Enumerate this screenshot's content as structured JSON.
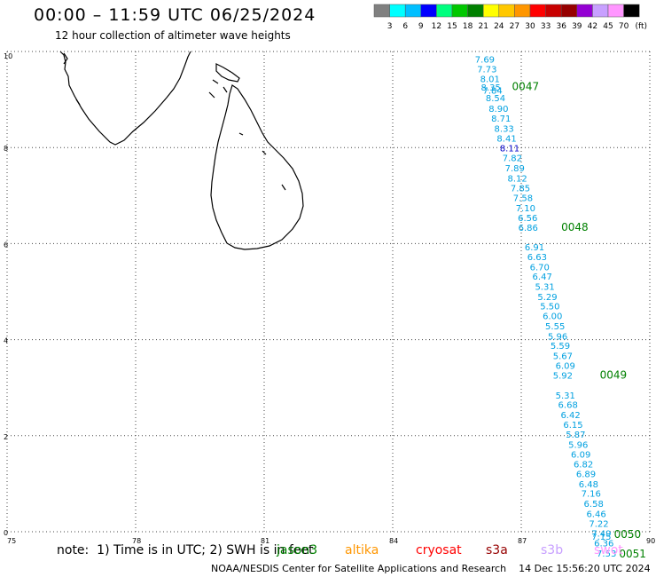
{
  "header": {
    "title": "00:00 – 11:59 UTC 06/25/2024",
    "subtitle": "12 hour collection of altimeter wave heights"
  },
  "colorbar": {
    "swatches": [
      "#808080",
      "#00ffff",
      "#00bfff",
      "#0000ff",
      "#00ff7f",
      "#00c800",
      "#008000",
      "#ffff00",
      "#ffc800",
      "#ff9600",
      "#ff0000",
      "#c80000",
      "#960000",
      "#9400d3",
      "#c8a0ff",
      "#ff96ff",
      "#000000"
    ],
    "labels": [
      "3",
      "6",
      "9",
      "12",
      "15",
      "18",
      "21",
      "24",
      "27",
      "30",
      "33",
      "36",
      "39",
      "42",
      "45",
      "70"
    ],
    "unit": "(ft)"
  },
  "map": {
    "x_ticks": [
      "75",
      "78",
      "81",
      "84",
      "87",
      "90"
    ],
    "y_ticks": [
      "0",
      "2",
      "4",
      "6",
      "8",
      "10"
    ],
    "wave_color": "#00a0e0",
    "wave_highlight_color": "#0000c8",
    "label_color": "#008000",
    "wave_heights": [
      {
        "value": "7.69",
        "lon": 86.15,
        "lat": 9.84
      },
      {
        "value": "7.73",
        "lon": 86.2,
        "lat": 9.64
      },
      {
        "value": "8.01",
        "lon": 86.27,
        "lat": 9.44
      },
      {
        "value": "7.84",
        "lon": 86.33,
        "lat": 9.2
      },
      {
        "value": "8.35",
        "lon": 86.29,
        "lat": 9.26
      },
      {
        "value": "8.54",
        "lon": 86.4,
        "lat": 9.04
      },
      {
        "value": "8.90",
        "lon": 86.47,
        "lat": 8.82
      },
      {
        "value": "8.71",
        "lon": 86.53,
        "lat": 8.61
      },
      {
        "value": "8.33",
        "lon": 86.6,
        "lat": 8.4
      },
      {
        "value": "8.41",
        "lon": 86.66,
        "lat": 8.2
      },
      {
        "value": "8.11",
        "lon": 86.73,
        "lat": 7.99,
        "highlight": true
      },
      {
        "value": "7.82",
        "lon": 86.79,
        "lat": 7.79
      },
      {
        "value": "7.89",
        "lon": 86.85,
        "lat": 7.58
      },
      {
        "value": "8.12",
        "lon": 86.91,
        "lat": 7.37
      },
      {
        "value": "7.85",
        "lon": 86.98,
        "lat": 7.16
      },
      {
        "value": "7.58",
        "lon": 87.04,
        "lat": 6.96
      },
      {
        "value": "7.10",
        "lon": 87.1,
        "lat": 6.75
      },
      {
        "value": "6.56",
        "lon": 87.15,
        "lat": 6.54
      },
      {
        "value": "6.86",
        "lon": 87.16,
        "lat": 6.34
      },
      {
        "value": "6.91",
        "lon": 87.31,
        "lat": 5.93
      },
      {
        "value": "6.63",
        "lon": 87.37,
        "lat": 5.73
      },
      {
        "value": "6.70",
        "lon": 87.43,
        "lat": 5.52
      },
      {
        "value": "6.47",
        "lon": 87.49,
        "lat": 5.32
      },
      {
        "value": "5.31",
        "lon": 87.55,
        "lat": 5.11
      },
      {
        "value": "5.29",
        "lon": 87.61,
        "lat": 4.9
      },
      {
        "value": "5.50",
        "lon": 87.67,
        "lat": 4.7
      },
      {
        "value": "6.00",
        "lon": 87.73,
        "lat": 4.5
      },
      {
        "value": "5.55",
        "lon": 87.79,
        "lat": 4.29
      },
      {
        "value": "5.96",
        "lon": 87.85,
        "lat": 4.08
      },
      {
        "value": "5.59",
        "lon": 87.91,
        "lat": 3.88
      },
      {
        "value": "5.67",
        "lon": 87.97,
        "lat": 3.67
      },
      {
        "value": "6.09",
        "lon": 88.03,
        "lat": 3.47
      },
      {
        "value": "5.92",
        "lon": 87.97,
        "lat": 3.26
      },
      {
        "value": "5.31",
        "lon": 88.03,
        "lat": 2.85
      },
      {
        "value": "6.68",
        "lon": 88.09,
        "lat": 2.65
      },
      {
        "value": "6.42",
        "lon": 88.15,
        "lat": 2.44
      },
      {
        "value": "6.15",
        "lon": 88.21,
        "lat": 2.24
      },
      {
        "value": "5.87",
        "lon": 88.27,
        "lat": 2.03
      },
      {
        "value": "5.96",
        "lon": 88.33,
        "lat": 1.82
      },
      {
        "value": "6.09",
        "lon": 88.39,
        "lat": 1.62
      },
      {
        "value": "6.82",
        "lon": 88.45,
        "lat": 1.41
      },
      {
        "value": "6.89",
        "lon": 88.51,
        "lat": 1.21
      },
      {
        "value": "6.48",
        "lon": 88.57,
        "lat": 1.0
      },
      {
        "value": "7.16",
        "lon": 88.63,
        "lat": 0.8
      },
      {
        "value": "6.58",
        "lon": 88.69,
        "lat": 0.59
      },
      {
        "value": "6.46",
        "lon": 88.75,
        "lat": 0.38
      },
      {
        "value": "7.22",
        "lon": 88.81,
        "lat": 0.18
      },
      {
        "value": "7.49",
        "lon": 88.87,
        "lat": -0.03
      },
      {
        "value": "7.15",
        "lon": 88.87,
        "lat": -0.09
      },
      {
        "value": "6.36",
        "lon": 88.93,
        "lat": -0.23
      },
      {
        "value": "7.53",
        "lon": 88.99,
        "lat": -0.44
      }
    ],
    "pass_labels": [
      {
        "text": "0047",
        "lon": 87.1,
        "lat": 9.27
      },
      {
        "text": "0048",
        "lon": 88.25,
        "lat": 6.34
      },
      {
        "text": "0049",
        "lon": 89.15,
        "lat": 3.26
      },
      {
        "text": "0050",
        "lon": 89.48,
        "lat": -0.06
      },
      {
        "text": "0051",
        "lon": 89.6,
        "lat": -0.46
      }
    ]
  },
  "footer": {
    "note": "note:  1) Time is in UTC; 2) SWH is in feet",
    "satellites": [
      {
        "name": "jason3",
        "color": "#008000"
      },
      {
        "name": "altika",
        "color": "#ff9600"
      },
      {
        "name": "cryosat",
        "color": "#ff0000"
      },
      {
        "name": "s3a",
        "color": "#960000"
      },
      {
        "name": "s3b",
        "color": "#c8a0ff"
      },
      {
        "name": "swot",
        "color": "#ff96ff"
      }
    ],
    "credit": "NOAA/NESDIS Center for Satellite Applications and Research    14 Dec 15:56:20 UTC 2024"
  }
}
